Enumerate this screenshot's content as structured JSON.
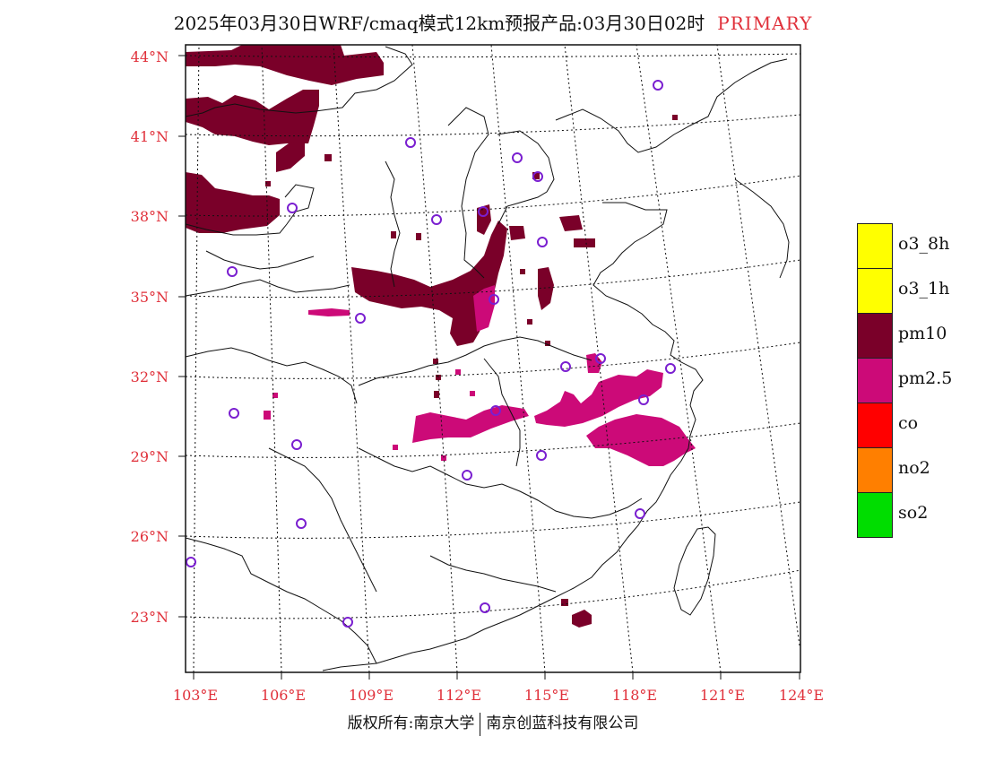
{
  "title": {
    "main": "2025年03月30日WRF/cmaq模式12km预报产品:03月30日02时",
    "tag": "PRIMARY"
  },
  "axes": {
    "lat_labels": [
      "44°N",
      "41°N",
      "38°N",
      "35°N",
      "32°N",
      "29°N",
      "26°N",
      "23°N"
    ],
    "lon_labels": [
      "103°E",
      "106°E",
      "109°E",
      "112°E",
      "115°E",
      "118°E",
      "121°E",
      "124°E"
    ]
  },
  "legend": [
    {
      "label": "o3_8h",
      "color": "#ffff00"
    },
    {
      "label": "o3_1h",
      "color": "#ffff00"
    },
    {
      "label": "pm10",
      "color": "#7a0029"
    },
    {
      "label": "pm2.5",
      "color": "#cc0a78"
    },
    {
      "label": "co",
      "color": "#ff0000"
    },
    {
      "label": "no2",
      "color": "#ff7f00"
    },
    {
      "label": "so2",
      "color": "#00dd00"
    }
  ],
  "copyright": {
    "left": "版权所有:南京大学",
    "right": "南京创蓝科技有限公司"
  },
  "colors": {
    "pm10": "#7a0029",
    "pm25": "#cc0a78",
    "station": "#7a1fd0",
    "axis_text": "#e0303a"
  }
}
